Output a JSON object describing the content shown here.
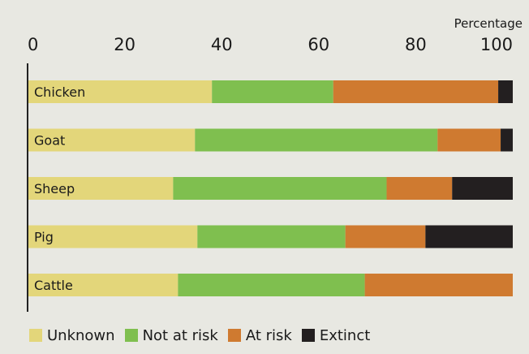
{
  "chart_data": {
    "type": "bar",
    "orientation": "horizontal",
    "stacked": true,
    "title": "",
    "xlabel": "Percentage",
    "ylabel": "",
    "xlim": [
      0,
      100
    ],
    "x_ticks": [
      "0",
      "20",
      "40",
      "60",
      "80",
      "100"
    ],
    "categories": [
      "Chicken",
      "Goat",
      "Sheep",
      "Pig",
      "Cattle"
    ],
    "series": [
      {
        "name": "Unknown",
        "color": "#e3d67a",
        "values": [
          38,
          34.5,
          30,
          35,
          31
        ]
      },
      {
        "name": "Not at risk",
        "color": "#7fbf4f",
        "values": [
          25,
          50,
          44,
          30.5,
          38.5
        ]
      },
      {
        "name": "At risk",
        "color": "#cf7a30",
        "values": [
          34,
          13,
          13.5,
          16.5,
          30.5
        ]
      },
      {
        "name": "Extinct",
        "color": "#231f20",
        "values": [
          3,
          2.5,
          12.5,
          18,
          0
        ]
      }
    ],
    "grid": false,
    "legend_position": "bottom-left"
  }
}
